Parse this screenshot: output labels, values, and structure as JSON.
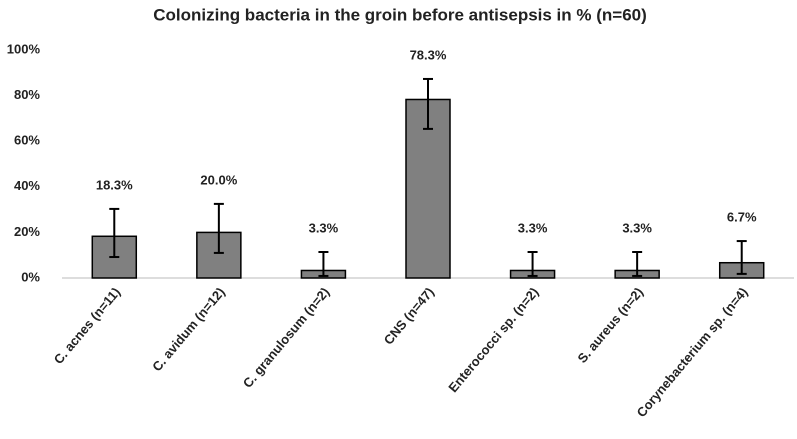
{
  "chart_data": {
    "type": "bar",
    "title": "Colonizing bacteria in the groin before antisepsis in % (n=60)",
    "categories": [
      "C. acnes (n=11)",
      "C. avidum (n=12)",
      "C. granulosum (n=2)",
      "CNS (n=47)",
      "Enterococci sp. (n=2)",
      "S. aureus (n=2)",
      "Corynebacterium sp.  (n=4)"
    ],
    "values": [
      18.3,
      20.0,
      3.3,
      78.3,
      3.3,
      3.3,
      6.7
    ],
    "value_labels": [
      "18.3%",
      "20.0%",
      "3.3%",
      "78.3%",
      "3.3%",
      "3.3%",
      "6.7%"
    ],
    "error_low": [
      9.2,
      11.0,
      0.9,
      65.4,
      0.9,
      0.9,
      1.8
    ],
    "error_high": [
      30.3,
      32.5,
      11.4,
      87.3,
      11.4,
      11.4,
      16.2
    ],
    "color": "#808080",
    "ylim": [
      0,
      100
    ],
    "yticks": [
      {
        "value": 0,
        "label": "0%"
      },
      {
        "value": 20,
        "label": "20%"
      },
      {
        "value": 40,
        "label": "40%"
      },
      {
        "value": 60,
        "label": "60%"
      },
      {
        "value": 80,
        "label": "80%"
      },
      {
        "value": 100,
        "label": "100%"
      }
    ],
    "grid": false
  }
}
